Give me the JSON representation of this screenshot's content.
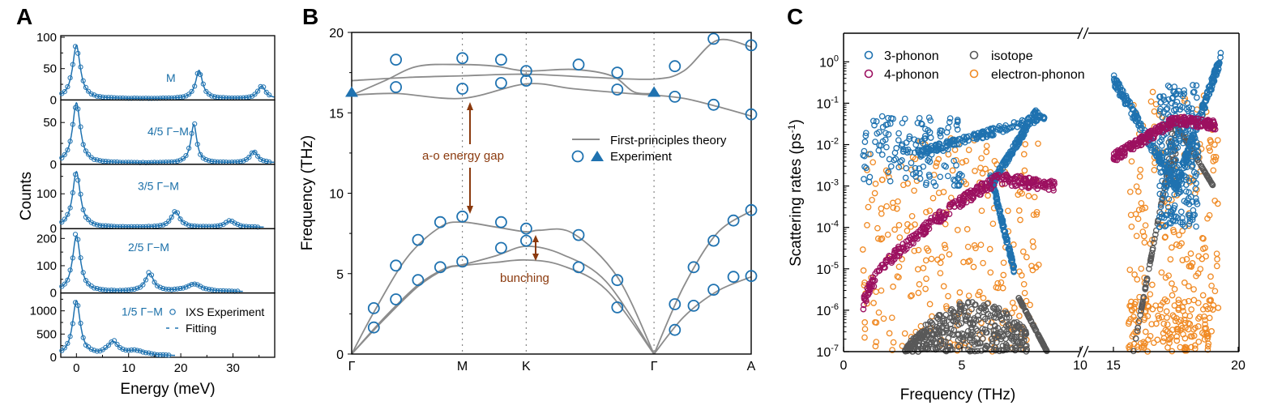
{
  "colors": {
    "ixs_blue": "#1f72b0",
    "theory_gray": "#8c8c8c",
    "arrow_brown": "#8b3a0e",
    "three_phonon": "#1f72b0",
    "four_phonon": "#9c1060",
    "isotope": "#595959",
    "electron_phonon": "#f08a24"
  },
  "chart_data": [
    {
      "id": "A",
      "type": "line",
      "panel_label": "A",
      "xlabel": "Energy (meV)",
      "ylabel": "Counts",
      "xlim": [
        -3,
        38
      ],
      "xticks": [
        0,
        10,
        20,
        30
      ],
      "legend": {
        "placement": "bottom-subplot right",
        "entries": [
          "IXS Experiment",
          "Fitting"
        ]
      },
      "subplots": [
        {
          "label": "M",
          "ylim": [
            0,
            100
          ],
          "yticks": [
            0,
            50,
            100
          ],
          "peaks": [
            [
              0,
              85,
              0.9
            ],
            [
              23.5,
              45,
              0.8
            ],
            [
              35.5,
              20,
              0.9
            ]
          ],
          "x_end": 38
        },
        {
          "label": "4/5 Γ−M",
          "ylim": [
            0,
            75
          ],
          "yticks": [
            0,
            50
          ],
          "peaks": [
            [
              0,
              72,
              0.9
            ],
            [
              22.5,
              46,
              0.7
            ],
            [
              34,
              14,
              0.9
            ]
          ],
          "x_end": 38
        },
        {
          "label": "3/5 Γ−M",
          "ylim": [
            0,
            180
          ],
          "yticks": [
            0,
            100
          ],
          "peaks": [
            [
              0,
              160,
              0.9
            ],
            [
              19,
              45,
              1.0
            ],
            [
              29.5,
              18,
              1.2
            ]
          ],
          "x_end": 36
        },
        {
          "label": "2/5 Γ−M",
          "ylim": [
            0,
            230
          ],
          "yticks": [
            0,
            100,
            200
          ],
          "peaks": [
            [
              0,
              205,
              0.9
            ],
            [
              14,
              65,
              1.0
            ],
            [
              22.5,
              28,
              1.8
            ]
          ],
          "x_end": 32
        },
        {
          "label": "1/5 Γ−M",
          "ylim": [
            0,
            1350
          ],
          "yticks": [
            0,
            500,
            1000
          ],
          "peaks": [
            [
              0,
              1180,
              0.9
            ],
            [
              7,
              280,
              1.3
            ],
            [
              11.5,
              100,
              2.2
            ]
          ],
          "x_end": 19
        }
      ]
    },
    {
      "id": "B",
      "type": "line",
      "panel_label": "B",
      "ylabel": "Frequency (THz)",
      "ylim": [
        0,
        20
      ],
      "yticks": [
        0,
        5,
        10,
        15,
        20
      ],
      "xtick_labels": [
        "Γ",
        "M",
        "K",
        "Γ",
        "A"
      ],
      "xtick_positions": [
        0,
        1,
        1.577,
        2.732,
        3.61
      ],
      "legend": {
        "placement": "center-right",
        "entries": [
          "First-principles theory",
          "Experiment"
        ]
      },
      "annotations": [
        "a-o energy gap",
        "bunching"
      ],
      "theory_series": [
        {
          "name": "acoustic-TA",
          "points": [
            [
              0,
              0
            ],
            [
              0.3,
              2.2
            ],
            [
              0.6,
              4.2
            ],
            [
              0.85,
              5.3
            ],
            [
              1,
              5.5
            ],
            [
              1.3,
              5.7
            ],
            [
              1.577,
              5.85
            ],
            [
              1.9,
              5.5
            ],
            [
              2.3,
              4.0
            ],
            [
              2.732,
              0
            ]
          ]
        },
        {
          "name": "acoustic-TA2",
          "points": [
            [
              0,
              0
            ],
            [
              0.3,
              2.3
            ],
            [
              0.6,
              4.3
            ],
            [
              0.85,
              5.35
            ],
            [
              1,
              5.55
            ],
            [
              1.3,
              6.1
            ],
            [
              1.577,
              6.7
            ],
            [
              1.9,
              6.2
            ],
            [
              2.3,
              4.5
            ],
            [
              2.732,
              0
            ]
          ]
        },
        {
          "name": "acoustic-LA",
          "points": [
            [
              0,
              0
            ],
            [
              0.2,
              2.6
            ],
            [
              0.5,
              6.0
            ],
            [
              0.8,
              7.9
            ],
            [
              1,
              8.2
            ],
            [
              1.3,
              7.9
            ],
            [
              1.577,
              7.6
            ],
            [
              1.7,
              7.7
            ],
            [
              2.0,
              7.5
            ],
            [
              2.4,
              4.8
            ],
            [
              2.732,
              0
            ]
          ]
        },
        {
          "name": "acoustic-GA-low",
          "points": [
            [
              2.732,
              0
            ],
            [
              3.0,
              2.3
            ],
            [
              3.3,
              3.9
            ],
            [
              3.61,
              4.8
            ]
          ]
        },
        {
          "name": "acoustic-GA-high",
          "points": [
            [
              2.732,
              0
            ],
            [
              3.0,
              4.2
            ],
            [
              3.3,
              7.5
            ],
            [
              3.61,
              8.9
            ]
          ]
        },
        {
          "name": "optical-1",
          "points": [
            [
              0,
              16.1
            ],
            [
              0.4,
              16.2
            ],
            [
              1,
              15.9
            ],
            [
              1.577,
              16.8
            ],
            [
              2.0,
              16.5
            ],
            [
              2.5,
              16.2
            ],
            [
              2.732,
              16.1
            ],
            [
              3.0,
              15.9
            ],
            [
              3.3,
              15.4
            ],
            [
              3.61,
              14.8
            ]
          ]
        },
        {
          "name": "optical-2",
          "points": [
            [
              0,
              17.0
            ],
            [
              0.5,
              17.2
            ],
            [
              1,
              17.3
            ],
            [
              1.577,
              17.4
            ],
            [
              2.2,
              17.2
            ],
            [
              2.732,
              17.1
            ],
            [
              3.0,
              17.6
            ],
            [
              3.3,
              19.5
            ],
            [
              3.61,
              19.1
            ]
          ]
        },
        {
          "name": "optical-3",
          "points": [
            [
              0,
              16.1
            ],
            [
              0.3,
              17.0
            ],
            [
              0.6,
              17.9
            ],
            [
              1,
              18.0
            ],
            [
              1.3,
              17.9
            ],
            [
              1.577,
              17.6
            ],
            [
              2.0,
              17.7
            ],
            [
              2.35,
              17.3
            ],
            [
              2.55,
              16.3
            ],
            [
              2.732,
              16.2
            ]
          ]
        }
      ],
      "experiment_circles": [
        [
          0.2,
          2.85
        ],
        [
          0.2,
          1.65
        ],
        [
          0.4,
          5.5
        ],
        [
          0.4,
          3.4
        ],
        [
          0.6,
          7.1
        ],
        [
          0.6,
          4.6
        ],
        [
          0.8,
          8.2
        ],
        [
          0.8,
          5.4
        ],
        [
          1,
          8.55
        ],
        [
          1,
          5.75
        ],
        [
          1.35,
          8.2
        ],
        [
          1.35,
          6.6
        ],
        [
          1.577,
          7.8
        ],
        [
          1.577,
          7.05
        ],
        [
          2.05,
          7.4
        ],
        [
          2.05,
          5.4
        ],
        [
          2.4,
          4.6
        ],
        [
          2.4,
          2.9
        ],
        [
          2.92,
          3.1
        ],
        [
          2.92,
          1.5
        ],
        [
          3.09,
          5.4
        ],
        [
          3.09,
          3.0
        ],
        [
          3.27,
          7.05
        ],
        [
          3.27,
          4.0
        ],
        [
          3.45,
          8.3
        ],
        [
          3.45,
          4.8
        ],
        [
          3.61,
          8.95
        ],
        [
          3.61,
          4.85
        ],
        [
          0.4,
          18.3
        ],
        [
          0.4,
          16.6
        ],
        [
          1,
          18.4
        ],
        [
          1,
          16.5
        ],
        [
          1.35,
          18.3
        ],
        [
          1.35,
          16.85
        ],
        [
          1.577,
          17.6
        ],
        [
          1.577,
          17.0
        ],
        [
          2.05,
          18.0
        ],
        [
          2.4,
          17.5
        ],
        [
          2.4,
          16.45
        ],
        [
          2.92,
          17.9
        ],
        [
          2.92,
          16.0
        ],
        [
          3.27,
          19.6
        ],
        [
          3.27,
          15.5
        ],
        [
          3.61,
          19.2
        ],
        [
          3.61,
          14.9
        ]
      ],
      "experiment_triangles": [
        [
          0,
          16.25
        ],
        [
          2.732,
          16.25
        ]
      ]
    },
    {
      "id": "C",
      "type": "scatter",
      "panel_label": "C",
      "xlabel": "Frequency (THz)",
      "ylabel": "Scattering rates (ps⁻¹)",
      "yscale": "log",
      "ylim": [
        1e-07,
        5
      ],
      "ytick_labels": [
        "10^0",
        "10^-1",
        "10^-2",
        "10^-3",
        "10^-4",
        "10^-5",
        "10^-6",
        "10^-7"
      ],
      "xlim_segments": [
        [
          0,
          10
        ],
        [
          15,
          20
        ]
      ],
      "xticks": [
        0,
        5,
        10,
        15,
        20
      ],
      "axis_break": "between 10 and 15",
      "legend": {
        "placement": "top-left",
        "entries": [
          "3-phonon",
          "4-phonon",
          "isotope",
          "electron-phonon"
        ]
      },
      "series_summary": [
        {
          "name": "3-phonon",
          "description": "scattered 1e-3 to 5e-2 at 0.5-5 THz, branch rising to 7e-2 at 8.5 THz, dropping to 1e-5 near 7 THz; 15-19.3 THz rising to 1.3e0, dense 1e-4 to 3e-1"
        },
        {
          "name": "4-phonon",
          "description": "rises from 1e-6 at 0.8 THz to ~1.5e-3 at 6-7 THz, 1e-3 at 9 THz; 15-19 THz ~5e-3 to 5e-2"
        },
        {
          "name": "isotope",
          "description": "~1e-7 to 2e-6 between 2.5 and 8.7 THz; 15.5-19 THz branches 1e-3 to 5e-2"
        },
        {
          "name": "electron-phonon",
          "description": "widely scattered 1e-7 to 3e-2 across 1-8 THz and 15-19 THz"
        }
      ]
    }
  ]
}
